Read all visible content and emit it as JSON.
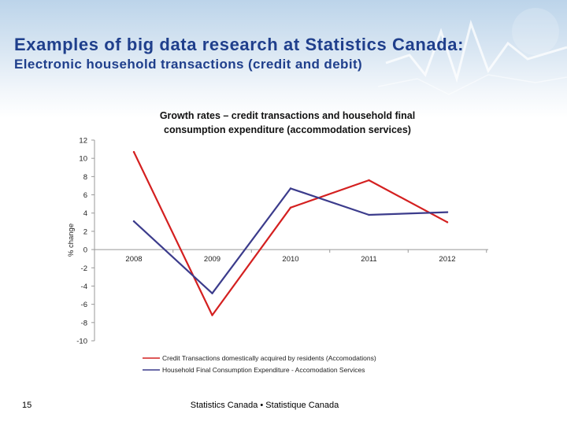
{
  "slide": {
    "title": "Examples of big data research at Statistics Canada:",
    "subtitle": "Electronic household transactions (credit and debit)",
    "slide_number": "15",
    "footer": "Statistics Canada • Statistique Canada"
  },
  "chart_data": {
    "type": "line",
    "title_lines": [
      "Growth rates – credit transactions and household final",
      "consumption expenditure (accommodation services)"
    ],
    "ylabel": "% change",
    "xlabel": "",
    "ylim": [
      -10,
      12
    ],
    "yticks": [
      "12",
      "10",
      "8",
      "6",
      "4",
      "2",
      "0",
      "-2",
      "-4",
      "-6",
      "-8",
      "-10"
    ],
    "x": [
      2008,
      2009,
      2010,
      2011,
      2012
    ],
    "categories": [
      "2008",
      "2009",
      "2010",
      "2011",
      "2012"
    ],
    "grid": false,
    "legend_position": "bottom",
    "series": [
      {
        "name": "Credit Transactions domestically acquired by residents (Accomodations)",
        "color": "#d42020",
        "values": [
          10.7,
          -7.2,
          4.6,
          7.6,
          3.0
        ]
      },
      {
        "name": "Household Final Consumption Expenditure - Accomodation Services",
        "color": "#3c3c8c",
        "values": [
          3.1,
          -4.8,
          6.7,
          3.8,
          4.1
        ]
      }
    ]
  }
}
